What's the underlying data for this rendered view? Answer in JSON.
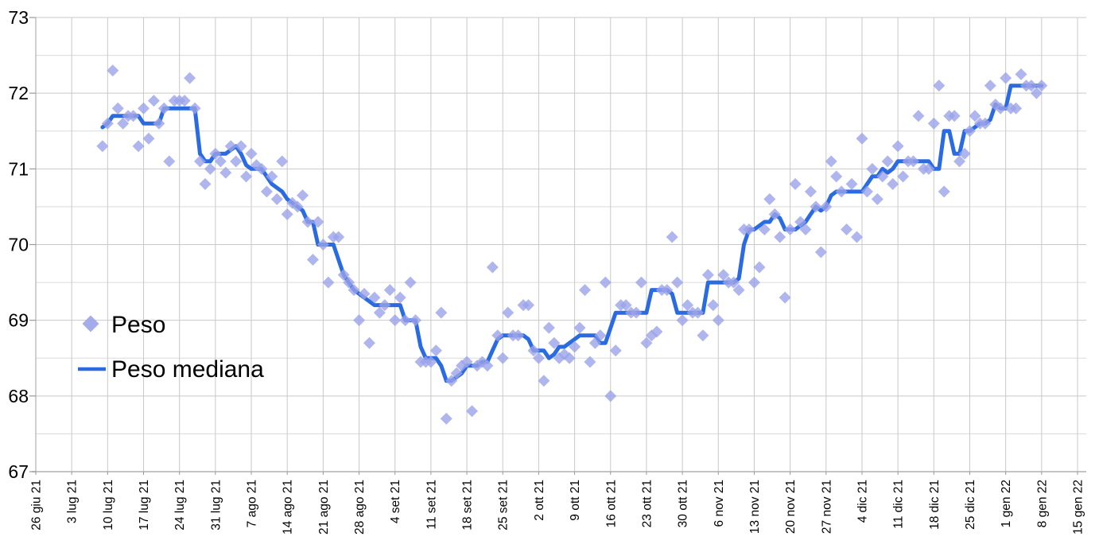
{
  "legend": {
    "items": [
      {
        "label": "Peso",
        "marker": "diamond"
      },
      {
        "label": "Peso mediana",
        "marker": "line"
      }
    ]
  },
  "colors": {
    "background": "#ffffff",
    "scatter_fill": "#9ba3e9",
    "line_stroke": "#2b6be2",
    "grid_major": "#c9c9c9",
    "grid_minor": "#dadada",
    "axis_line": "#b0b0b0",
    "tick_mark": "#999999",
    "label_text": "#000000"
  },
  "chart_data": {
    "type": "scatter",
    "title": "",
    "xlabel": "",
    "ylabel": "",
    "grid": true,
    "legend_position": "inside-left",
    "y_axis": {
      "min": 67,
      "max": 73,
      "major_step": 1,
      "minor_gridline_step": 0.5,
      "tick_labels": [
        "67",
        "68",
        "69",
        "70",
        "71",
        "72",
        "73"
      ]
    },
    "x_axis": {
      "tick_unit": "week",
      "tick_labels": [
        "26 giu 21",
        "3 lug 21",
        "10 lug 21",
        "17 lug 21",
        "24 lug 21",
        "31 lug 21",
        "7 ago 21",
        "14 ago 21",
        "21 ago 21",
        "28 ago 21",
        "4 set 21",
        "11 set 21",
        "18 set 21",
        "25 set 21",
        "2 ott 21",
        "9 ott 21",
        "16 ott 21",
        "23 ott 21",
        "30 ott 21",
        "6 nov 21",
        "13 nov 21",
        "20 nov 21",
        "27 nov 21",
        "4 dic 21",
        "11 dic 21",
        "18 dic 21",
        "25 dic 21",
        "1 gen 22",
        "8 gen 22",
        "15 gen 22"
      ]
    },
    "points_are_daily": true,
    "first_point_day_offset_from_first_tick": 13,
    "series": [
      {
        "name": "Peso",
        "type": "scatter",
        "marker": "diamond",
        "color": "#9ba3e9",
        "daily_values": [
          71.3,
          71.6,
          72.3,
          71.8,
          71.6,
          71.7,
          71.7,
          71.3,
          71.8,
          71.4,
          71.9,
          71.6,
          71.8,
          71.1,
          71.9,
          71.9,
          71.9,
          72.2,
          71.8,
          71.1,
          70.8,
          71.0,
          71.2,
          71.1,
          70.95,
          71.3,
          71.1,
          71.3,
          70.9,
          71.2,
          71.05,
          71.0,
          70.7,
          70.9,
          70.6,
          71.1,
          70.4,
          70.55,
          70.5,
          70.65,
          70.3,
          69.8,
          70.3,
          70.0,
          69.5,
          70.1,
          70.1,
          69.6,
          69.5,
          69.4,
          69.0,
          69.35,
          68.7,
          69.3,
          69.1,
          69.2,
          69.4,
          69.0,
          69.3,
          69.0,
          69.5,
          69.0,
          68.45,
          68.45,
          68.45,
          68.6,
          69.1,
          67.7,
          68.2,
          68.3,
          68.4,
          68.45,
          67.8,
          68.4,
          68.45,
          68.4,
          69.7,
          68.8,
          68.5,
          69.1,
          68.8,
          68.8,
          69.2,
          69.2,
          68.6,
          68.5,
          68.2,
          68.9,
          68.7,
          68.5,
          68.55,
          68.5,
          68.65,
          68.9,
          69.4,
          68.45,
          68.7,
          68.8,
          69.5,
          68.0,
          68.6,
          69.2,
          69.2,
          69.1,
          69.1,
          69.5,
          68.7,
          68.8,
          68.85,
          69.4,
          69.4,
          70.1,
          69.5,
          69.0,
          69.2,
          69.1,
          69.1,
          68.8,
          69.6,
          69.2,
          69.0,
          69.6,
          69.5,
          69.5,
          69.4,
          70.2,
          70.2,
          69.5,
          69.7,
          70.2,
          70.6,
          70.4,
          70.1,
          69.3,
          70.2,
          70.8,
          70.3,
          70.2,
          70.7,
          70.5,
          69.9,
          70.5,
          71.1,
          70.9,
          70.7,
          70.2,
          70.8,
          70.1,
          71.4,
          70.7,
          71.0,
          70.6,
          70.9,
          71.1,
          70.8,
          71.3,
          70.9,
          71.1,
          71.1,
          71.7,
          71.0,
          71.0,
          71.6,
          72.1,
          70.7,
          71.7,
          71.7,
          71.1,
          71.2,
          71.5,
          71.7,
          71.6,
          71.6,
          72.1,
          71.85,
          71.8,
          72.2,
          71.8,
          71.8,
          72.25,
          72.1,
          72.1,
          72.0,
          72.1
        ]
      },
      {
        "name": "Peso mediana",
        "type": "line",
        "color": "#2b6be2",
        "daily_values": [
          71.55,
          71.6,
          71.7,
          71.7,
          71.7,
          71.7,
          71.7,
          71.7,
          71.6,
          71.6,
          71.6,
          71.6,
          71.8,
          71.8,
          71.8,
          71.8,
          71.8,
          71.8,
          71.8,
          71.2,
          71.1,
          71.1,
          71.2,
          71.2,
          71.2,
          71.25,
          71.3,
          71.2,
          71.05,
          71.0,
          71.0,
          71.0,
          70.9,
          70.8,
          70.75,
          70.7,
          70.6,
          70.55,
          70.5,
          70.45,
          70.3,
          70.3,
          70.0,
          70.0,
          70.0,
          70.0,
          69.8,
          69.6,
          69.5,
          69.4,
          69.35,
          69.3,
          69.25,
          69.2,
          69.2,
          69.2,
          69.2,
          69.2,
          69.2,
          69.0,
          69.0,
          69.0,
          68.65,
          68.5,
          68.5,
          68.5,
          68.4,
          68.2,
          68.2,
          68.25,
          68.3,
          68.4,
          68.4,
          68.4,
          68.45,
          68.45,
          68.6,
          68.75,
          68.8,
          68.8,
          68.8,
          68.8,
          68.8,
          68.75,
          68.6,
          68.6,
          68.6,
          68.5,
          68.55,
          68.65,
          68.65,
          68.7,
          68.75,
          68.8,
          68.8,
          68.8,
          68.8,
          68.7,
          68.7,
          68.9,
          69.1,
          69.1,
          69.1,
          69.1,
          69.1,
          69.1,
          69.1,
          69.4,
          69.4,
          69.4,
          69.4,
          69.35,
          69.1,
          69.1,
          69.1,
          69.1,
          69.1,
          69.1,
          69.5,
          69.5,
          69.5,
          69.5,
          69.5,
          69.5,
          69.55,
          70.0,
          70.2,
          70.2,
          70.25,
          70.3,
          70.3,
          70.4,
          70.35,
          70.2,
          70.2,
          70.2,
          70.25,
          70.3,
          70.4,
          70.5,
          70.45,
          70.5,
          70.65,
          70.7,
          70.7,
          70.7,
          70.7,
          70.7,
          70.7,
          70.8,
          70.9,
          70.9,
          71.0,
          70.95,
          71.0,
          71.1,
          71.1,
          71.1,
          71.1,
          71.1,
          71.1,
          71.1,
          71.0,
          71.0,
          71.5,
          71.5,
          71.2,
          71.2,
          71.5,
          71.5,
          71.55,
          71.6,
          71.6,
          71.65,
          71.85,
          71.8,
          71.8,
          72.1,
          72.1,
          72.1,
          72.1,
          72.1,
          72.1,
          72.1
        ]
      }
    ]
  }
}
